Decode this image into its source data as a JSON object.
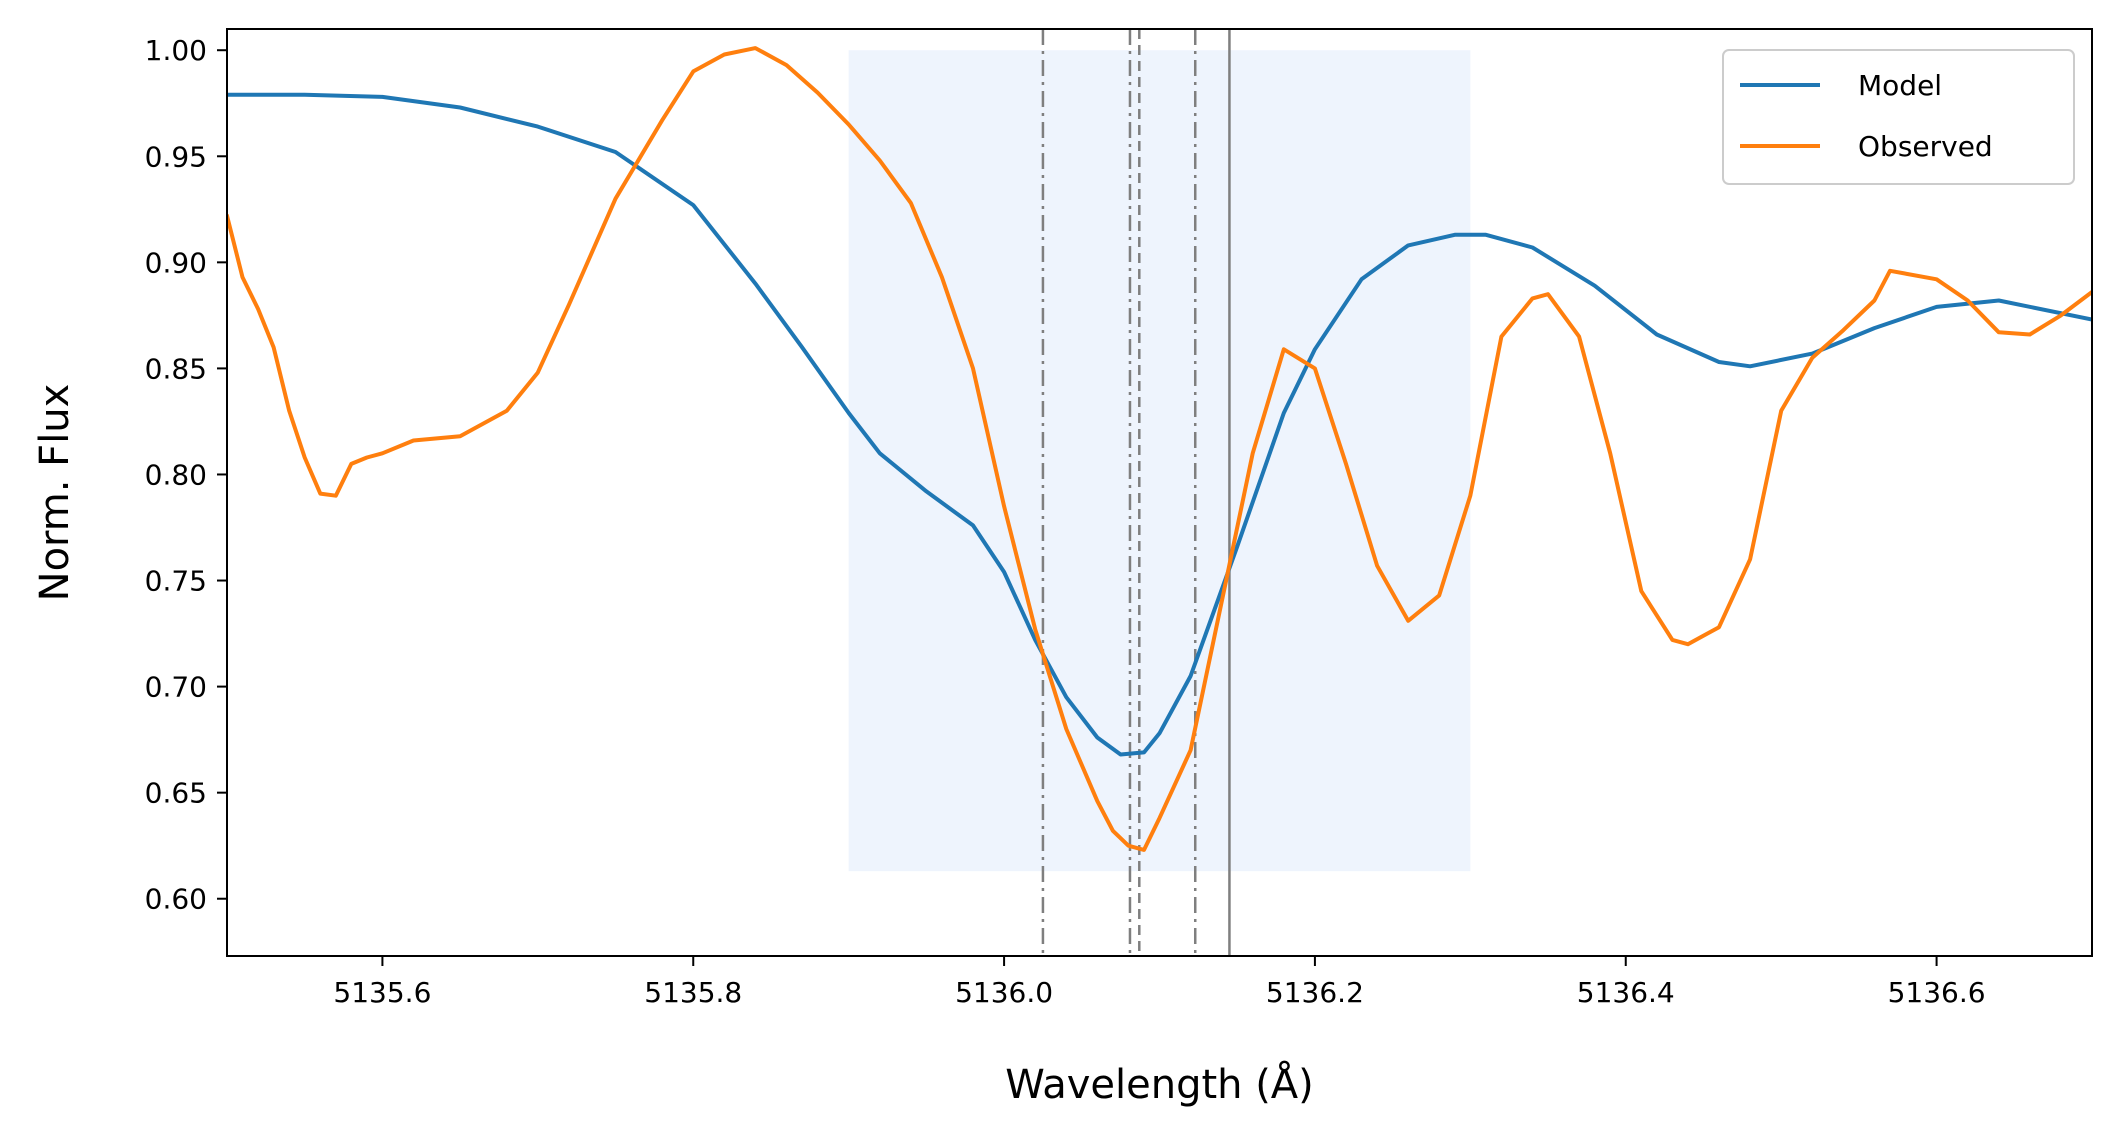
{
  "chart_data": {
    "type": "line",
    "title": "",
    "xlabel": "Wavelength (Å)",
    "ylabel": "Norm. Flux",
    "xlim": [
      5135.5,
      5136.7
    ],
    "ylim": [
      0.573,
      1.01
    ],
    "xticks": [
      5135.6,
      5135.8,
      5136.0,
      5136.2,
      5136.4,
      5136.6
    ],
    "xtick_labels": [
      "5135.6",
      "5135.8",
      "5136.0",
      "5136.2",
      "5136.4",
      "5136.6"
    ],
    "yticks": [
      0.6,
      0.65,
      0.7,
      0.75,
      0.8,
      0.85,
      0.9,
      0.95,
      1.0
    ],
    "ytick_labels": [
      "0.60",
      "0.65",
      "0.70",
      "0.75",
      "0.80",
      "0.85",
      "0.90",
      "0.95",
      "1.00"
    ],
    "grid": false,
    "legend": "top-right",
    "shaded_region": {
      "x": [
        5135.9,
        5136.3
      ],
      "y": [
        0.613,
        1.0
      ],
      "color": "#eef4fd"
    },
    "vertical_lines": [
      {
        "x": 5136.025,
        "style": "dashdot"
      },
      {
        "x": 5136.081,
        "style": "dashdot"
      },
      {
        "x": 5136.087,
        "style": "dashed"
      },
      {
        "x": 5136.123,
        "style": "dashdot"
      },
      {
        "x": 5136.145,
        "style": "solid"
      }
    ],
    "vline_color": "#7f7f7f",
    "series": [
      {
        "name": "Model",
        "color": "#1f77b4",
        "x": [
          5135.5,
          5135.55,
          5135.6,
          5135.65,
          5135.7,
          5135.75,
          5135.8,
          5135.84,
          5135.87,
          5135.9,
          5135.92,
          5135.95,
          5135.98,
          5136.0,
          5136.02,
          5136.04,
          5136.06,
          5136.075,
          5136.09,
          5136.1,
          5136.12,
          5136.15,
          5136.18,
          5136.2,
          5136.23,
          5136.26,
          5136.29,
          5136.31,
          5136.34,
          5136.38,
          5136.42,
          5136.46,
          5136.48,
          5136.52,
          5136.56,
          5136.6,
          5136.64,
          5136.7
        ],
        "y": [
          0.979,
          0.979,
          0.978,
          0.973,
          0.964,
          0.952,
          0.927,
          0.89,
          0.86,
          0.829,
          0.81,
          0.792,
          0.776,
          0.754,
          0.722,
          0.695,
          0.676,
          0.668,
          0.669,
          0.678,
          0.705,
          0.766,
          0.829,
          0.859,
          0.892,
          0.908,
          0.913,
          0.913,
          0.907,
          0.889,
          0.866,
          0.853,
          0.851,
          0.857,
          0.869,
          0.879,
          0.882,
          0.873
        ]
      },
      {
        "name": "Observed",
        "color": "#ff7f0e",
        "x": [
          5135.5,
          5135.51,
          5135.52,
          5135.53,
          5135.54,
          5135.55,
          5135.56,
          5135.57,
          5135.58,
          5135.59,
          5135.6,
          5135.62,
          5135.65,
          5135.68,
          5135.7,
          5135.72,
          5135.75,
          5135.78,
          5135.8,
          5135.82,
          5135.84,
          5135.86,
          5135.88,
          5135.9,
          5135.92,
          5135.94,
          5135.96,
          5135.98,
          5136.0,
          5136.02,
          5136.04,
          5136.06,
          5136.07,
          5136.08,
          5136.09,
          5136.1,
          5136.12,
          5136.14,
          5136.16,
          5136.18,
          5136.2,
          5136.22,
          5136.24,
          5136.26,
          5136.28,
          5136.3,
          5136.32,
          5136.34,
          5136.35,
          5136.37,
          5136.39,
          5136.41,
          5136.43,
          5136.44,
          5136.46,
          5136.48,
          5136.5,
          5136.52,
          5136.54,
          5136.56,
          5136.57,
          5136.6,
          5136.62,
          5136.64,
          5136.66,
          5136.68,
          5136.7
        ],
        "y": [
          0.922,
          0.893,
          0.878,
          0.86,
          0.83,
          0.808,
          0.791,
          0.79,
          0.805,
          0.808,
          0.81,
          0.816,
          0.818,
          0.83,
          0.848,
          0.88,
          0.93,
          0.967,
          0.99,
          0.998,
          1.001,
          0.993,
          0.98,
          0.965,
          0.948,
          0.928,
          0.893,
          0.85,
          0.785,
          0.727,
          0.68,
          0.646,
          0.632,
          0.625,
          0.623,
          0.638,
          0.67,
          0.74,
          0.81,
          0.859,
          0.85,
          0.805,
          0.757,
          0.731,
          0.743,
          0.79,
          0.865,
          0.883,
          0.885,
          0.865,
          0.81,
          0.745,
          0.722,
          0.72,
          0.728,
          0.76,
          0.83,
          0.855,
          0.868,
          0.882,
          0.896,
          0.892,
          0.882,
          0.867,
          0.866,
          0.875,
          0.886
        ]
      }
    ]
  }
}
